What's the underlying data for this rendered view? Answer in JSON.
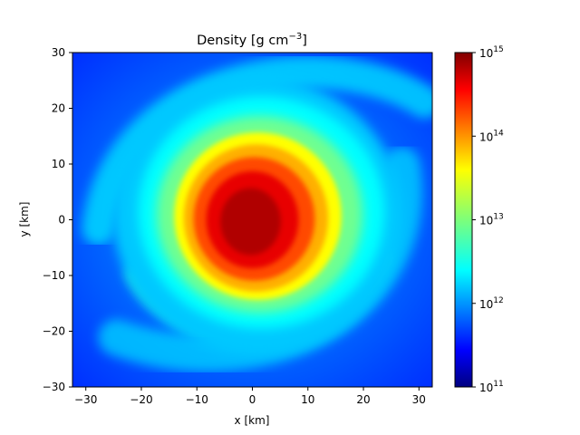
{
  "chart_data": {
    "type": "heatmap",
    "title": "Density [g cm",
    "title_exponent": "−3",
    "title_close": "]",
    "xlabel": "x [km]",
    "ylabel": "y [km]",
    "xlim": [
      -32.4,
      32.4
    ],
    "ylim": [
      -30,
      30
    ],
    "x_ticks": [
      -30,
      -20,
      -10,
      0,
      10,
      20,
      30
    ],
    "y_ticks": [
      -30,
      -20,
      -10,
      0,
      10,
      20,
      30
    ],
    "x_tick_labels": [
      "−30",
      "−20",
      "−10",
      "0",
      "10",
      "20",
      "30"
    ],
    "y_tick_labels": [
      "−30",
      "−20",
      "−10",
      "0",
      "10",
      "20",
      "30"
    ],
    "colorbar": {
      "scale": "log",
      "colormap": "jet",
      "range": [
        100000000000.0,
        1000000000000000.0
      ],
      "tick_exponents": [
        11,
        12,
        13,
        14,
        15
      ],
      "tick_base": "10"
    },
    "field": {
      "description": "log10 density",
      "center": [
        0,
        0
      ],
      "core_log_density": 14.95,
      "core_radius_km": 6,
      "halo_radius_km": 26,
      "background_log_density": 11.6,
      "spiral_arms": 2
    }
  },
  "colors": {
    "jet": [
      "#000080",
      "#0000ff",
      "#00ffff",
      "#ffff00",
      "#ff0000",
      "#800000"
    ]
  }
}
